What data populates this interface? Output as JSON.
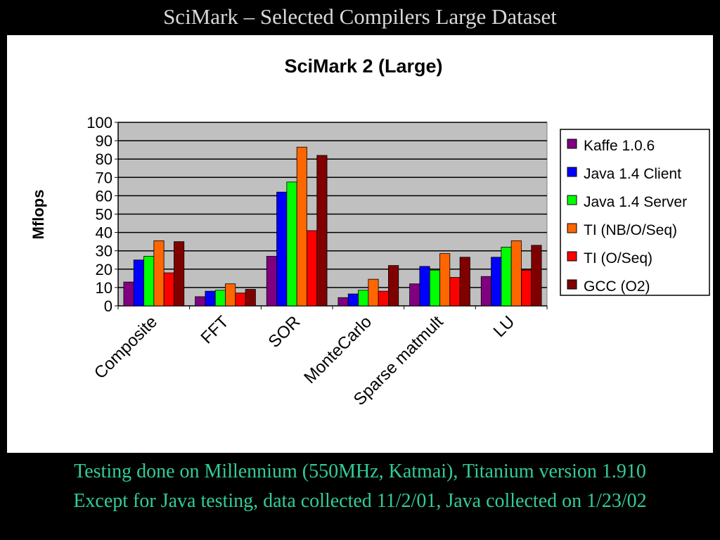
{
  "slide": {
    "title": "SciMark – Selected Compilers Large Dataset",
    "footnotes": [
      "Testing done on Millennium (550MHz, Katmai), Titanium version 1.910",
      "Except for Java testing, data collected 11/2/01, Java collected on 1/23/02"
    ]
  },
  "chart_data": {
    "type": "bar",
    "title": "SciMark 2 (Large)",
    "xlabel": "",
    "ylabel": "Mflops",
    "ylim": [
      0,
      100
    ],
    "yticks": [
      0,
      10,
      20,
      30,
      40,
      50,
      60,
      70,
      80,
      90,
      100
    ],
    "grid": true,
    "plot_background": "#c0c0c0",
    "legend_position": "right",
    "categories": [
      "Composite",
      "FFT",
      "SOR",
      "MonteCarlo",
      "Sparse matmult",
      "LU"
    ],
    "series": [
      {
        "name": "Kaffe 1.0.6",
        "color": "#800080",
        "values": [
          13,
          5,
          27,
          4.5,
          12,
          16
        ]
      },
      {
        "name": "Java 1.4 Client",
        "color": "#0000ff",
        "values": [
          25,
          8,
          62,
          6.5,
          21.5,
          26.5
        ]
      },
      {
        "name": "Java 1.4 Server",
        "color": "#00ff00",
        "values": [
          27,
          8.5,
          67.5,
          8.5,
          19.5,
          32
        ]
      },
      {
        "name": "TI (NB/O/Seq)",
        "color": "#ff6600",
        "values": [
          35.5,
          12,
          86.5,
          14.5,
          28.5,
          35.5
        ]
      },
      {
        "name": "TI (O/Seq)",
        "color": "#ff0000",
        "values": [
          18,
          7,
          41,
          8,
          15.5,
          19.5
        ]
      },
      {
        "name": "GCC (O2)",
        "color": "#800000",
        "values": [
          35,
          9,
          82,
          22,
          26.5,
          33
        ]
      }
    ]
  }
}
